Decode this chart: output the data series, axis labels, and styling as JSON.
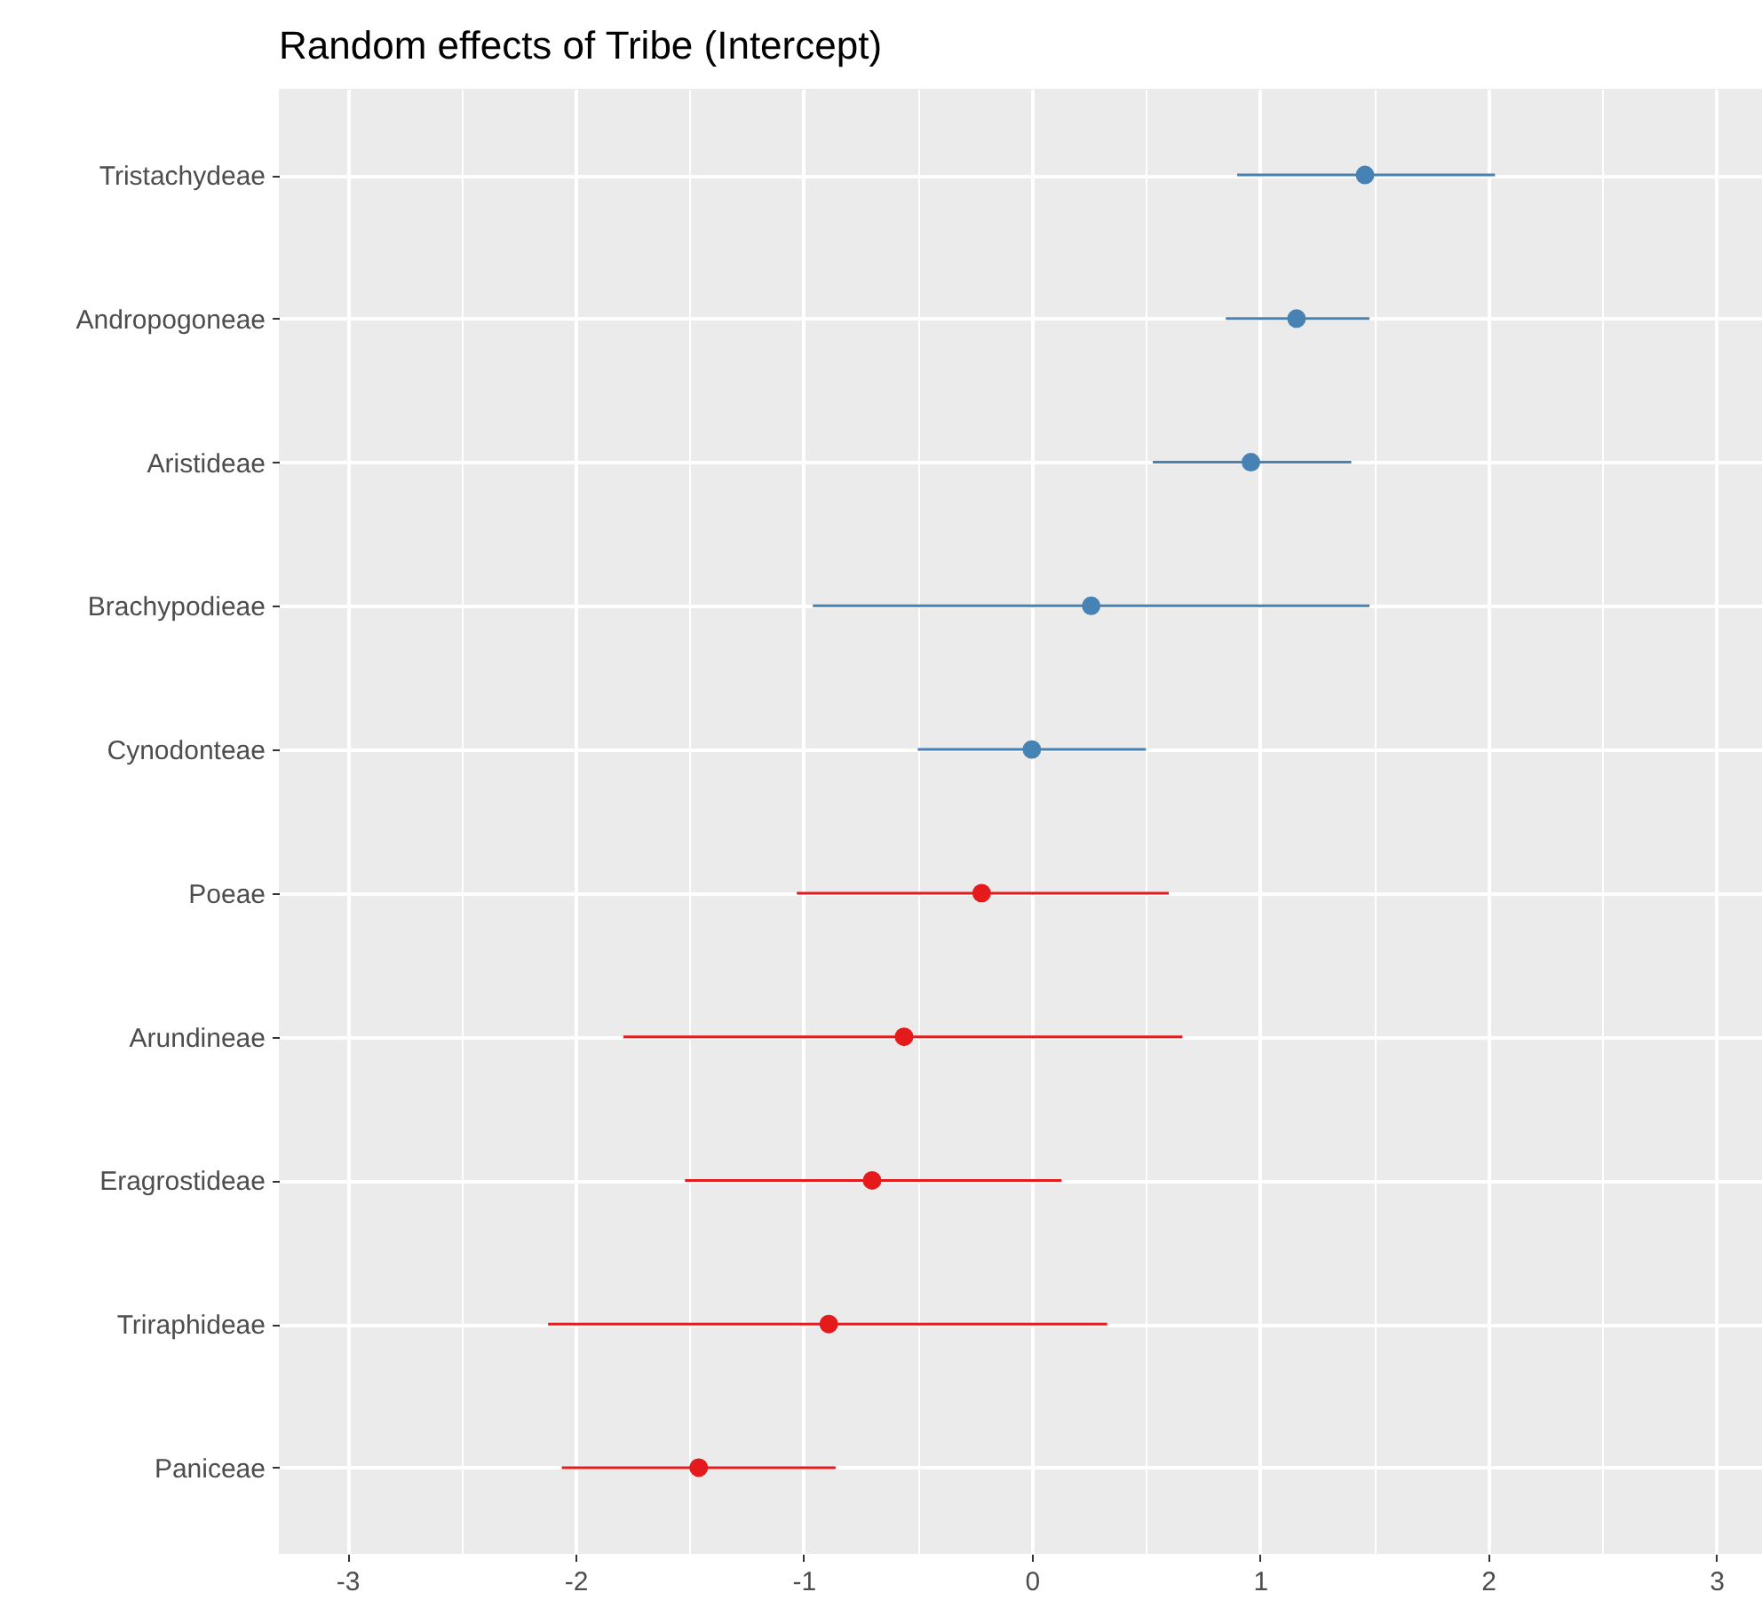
{
  "chart_data": {
    "type": "scatter",
    "title": "Random effects of Tribe (Intercept)",
    "categories": [
      "Tristachydeae",
      "Andropogoneae",
      "Aristideae",
      "Brachypodieae",
      "Cynodonteae",
      "Poeae",
      "Arundineae",
      "Eragrostideae",
      "Triraphideae",
      "Paniceae"
    ],
    "series": [
      {
        "color": "#4682b4",
        "values": [
          1.46,
          1.16,
          0.96,
          0.26,
          0.0,
          null,
          null,
          null,
          null,
          null
        ],
        "errors": [
          [
            0.9,
            2.03
          ],
          [
            0.85,
            1.48
          ],
          [
            0.53,
            1.4
          ],
          [
            -0.96,
            1.48
          ],
          [
            -0.5,
            0.5
          ],
          null,
          null,
          null,
          null,
          null
        ]
      },
      {
        "color": "#e41a1c",
        "values": [
          null,
          null,
          null,
          null,
          null,
          -0.22,
          -0.56,
          -0.7,
          -0.89,
          -1.46
        ],
        "errors": [
          null,
          null,
          null,
          null,
          null,
          [
            -1.03,
            0.6
          ],
          [
            -1.79,
            0.66
          ],
          [
            -1.52,
            0.13
          ],
          [
            -2.12,
            0.33
          ],
          [
            -2.06,
            -0.86
          ]
        ]
      }
    ],
    "orientation": "horizontal",
    "xlim": [
      -3.3,
      3.2
    ],
    "xticks": [
      -3,
      {
        "value": -2.5,
        "label": null
      },
      -2,
      {
        "value": -1.5,
        "label": null
      },
      -1,
      {
        "value": -0.5,
        "label": null
      },
      0,
      {
        "value": 0.5,
        "label": null
      },
      1,
      {
        "value": 1.5,
        "label": null
      },
      2,
      {
        "value": 2.5,
        "label": null
      },
      3
    ],
    "grid": true,
    "marker": "circle",
    "legend": false
  }
}
